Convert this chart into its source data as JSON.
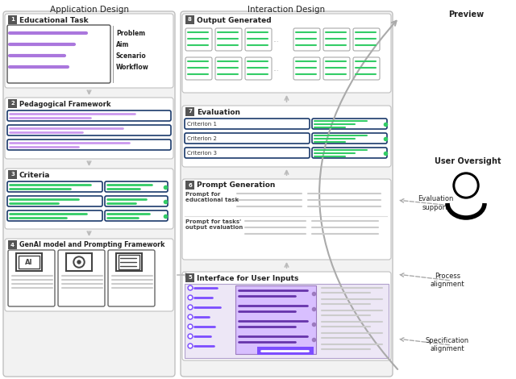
{
  "title_left": "Application Design",
  "title_right": "Interaction Design",
  "bg_color": "#ffffff",
  "dark_gray_badge": "#555555",
  "label_color": "#222222",
  "purple_line": "#aa77dd",
  "purple_line2": "#cc99ee",
  "green_line": "#33cc66",
  "blue_border": "#1a3a6b",
  "gray_line": "#cccccc",
  "section1_label": "Educational Task",
  "section2_label": "Pedagogical Framework",
  "section3_label": "Criteria",
  "section4_label": "GenAI model and Prompting Framework",
  "section5_label": "Interface for User Inputs",
  "section6_label": "Prompt Generation",
  "section7_label": "Evaluation",
  "section8_label": "Output Generated",
  "right_label1": "Preview",
  "right_label2": "User Oversight",
  "right_label3": "Evaluation\nsupport",
  "right_label4": "Process\nalignment",
  "right_label5": "Specification\nalignment",
  "crit_labels": [
    "Criterion 1",
    "Criterion 2",
    "Criterion 3"
  ],
  "task_words": [
    "Problem",
    "Aim",
    "Scenario",
    "Workflow"
  ],
  "purple_vivid": "#7c4dff",
  "purple_fill": "#ede7f6",
  "purple_mid_fill": "#d8bfff"
}
